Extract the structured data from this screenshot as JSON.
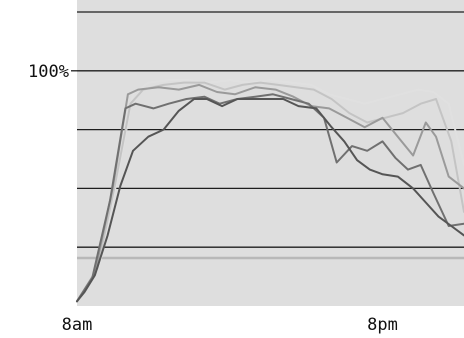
{
  "chart_data": {
    "type": "line",
    "title": "",
    "xlabel": "",
    "ylabel": "",
    "grid": true,
    "legend": "none",
    "x_ticks": [
      {
        "x": 8,
        "label": "8am"
      },
      {
        "x": 20,
        "label": "8pm"
      }
    ],
    "y_ticks": [
      {
        "y": 100,
        "label": "100%"
      }
    ],
    "xlim": [
      8,
      23.2
    ],
    "ylim": [
      0,
      125
    ],
    "gridlines_y": [
      25,
      50,
      75,
      100,
      125
    ],
    "series": [
      {
        "color": "#555555",
        "x": [
          8,
          8.3,
          8.7,
          9.2,
          9.7,
          10.2,
          10.8,
          11.4,
          12,
          12.6,
          13.1,
          13.7,
          14.3,
          14.9,
          15.5,
          16.1,
          16.7,
          17.4,
          18,
          18.5,
          19,
          19.5,
          20,
          20.6,
          21.2,
          21.7,
          22.2,
          22.7,
          23.2
        ],
        "y": [
          2,
          6,
          13,
          30,
          51,
          66,
          72,
          75,
          83,
          88,
          88,
          85,
          88,
          88,
          88,
          88,
          85,
          84,
          76,
          70,
          62,
          58,
          56,
          55,
          50,
          44,
          38,
          34,
          30
        ]
      },
      {
        "color": "#707070",
        "x": [
          8,
          8.6,
          9.3,
          9.9,
          10.3,
          11,
          11.6,
          12.3,
          13,
          13.6,
          14.3,
          15,
          15.7,
          16.4,
          17.1,
          17.7,
          18.2,
          18.8,
          19.4,
          20,
          20.5,
          21,
          21.5,
          22,
          22.6,
          23.2
        ],
        "y": [
          2,
          12,
          45,
          84,
          86,
          84,
          86,
          88,
          89,
          86,
          88,
          89,
          90,
          88,
          86,
          80,
          61,
          68,
          66,
          70,
          63,
          58,
          60,
          48,
          34,
          35
        ]
      },
      {
        "color": "#9a9a9a",
        "x": [
          8,
          8.7,
          9.4,
          10,
          10.4,
          11.2,
          12,
          12.8,
          13.5,
          14.2,
          15,
          15.8,
          16.5,
          17.2,
          17.9,
          18.6,
          19.3,
          20,
          20.6,
          21.2,
          21.7,
          22.1,
          22.6,
          23.2
        ],
        "y": [
          2,
          14,
          50,
          90,
          92,
          93,
          92,
          94,
          91,
          90,
          93,
          92,
          89,
          85,
          84,
          80,
          76,
          80,
          72,
          64,
          78,
          72,
          55,
          50
        ]
      },
      {
        "color": "#c4c4c4",
        "x": [
          8,
          8.8,
          9.5,
          10.1,
          10.6,
          11.4,
          12.2,
          13,
          13.8,
          14.5,
          15.2,
          15.9,
          16.6,
          17.3,
          18,
          18.7,
          19.4,
          20.1,
          20.8,
          21.5,
          22.1,
          22.7,
          23.2
        ],
        "y": [
          2,
          16,
          52,
          86,
          92,
          94,
          95,
          95,
          92,
          94,
          95,
          94,
          93,
          92,
          88,
          82,
          78,
          80,
          82,
          86,
          88,
          70,
          40
        ]
      },
      {
        "color": "#e0e0e0",
        "x": [
          8,
          8.9,
          9.6,
          10.2,
          10.8,
          11.6,
          12.4,
          13.2,
          14,
          14.8,
          15.6,
          16.4,
          17.2,
          17.9,
          18.6,
          19.3,
          20,
          20.7,
          21.4,
          22,
          22.6,
          23.2
        ],
        "y": [
          2,
          18,
          55,
          90,
          95,
          96,
          96,
          95,
          96,
          95,
          96,
          95,
          94,
          90,
          88,
          86,
          88,
          90,
          92,
          91,
          86,
          60
        ]
      }
    ]
  }
}
